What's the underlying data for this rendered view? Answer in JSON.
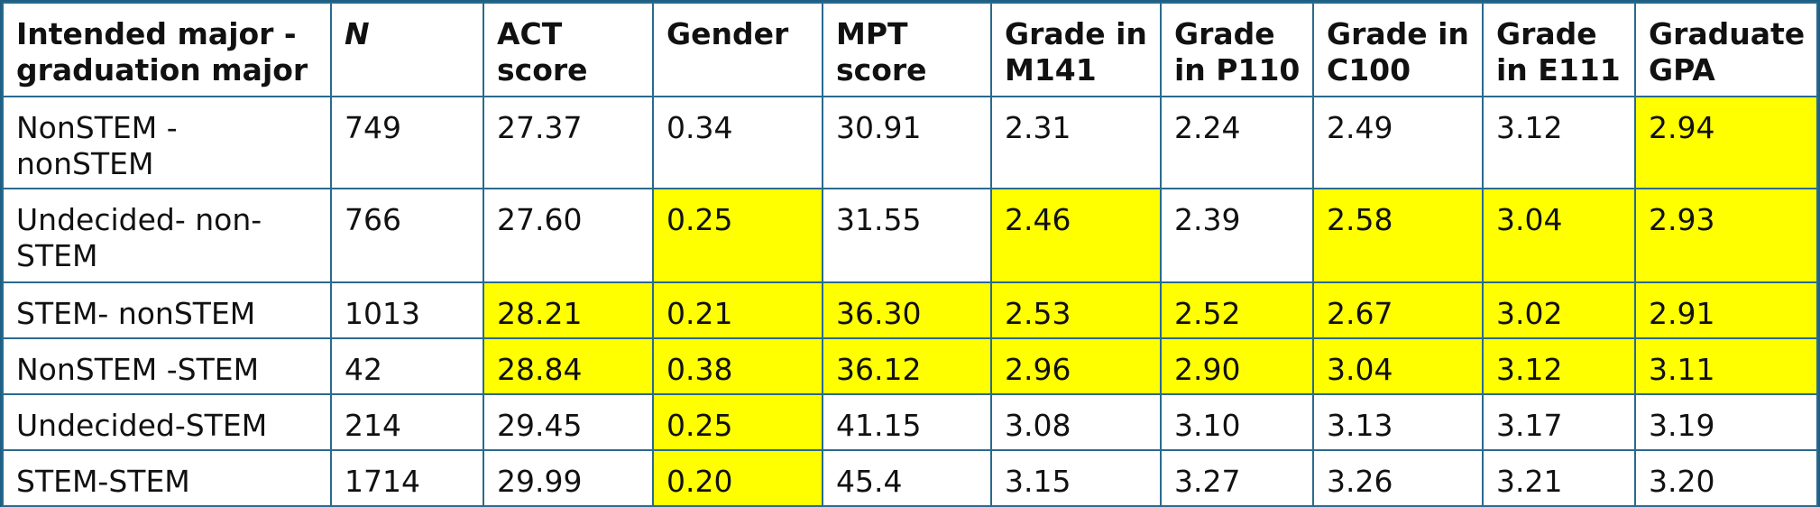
{
  "highlight_color": "#ffff00",
  "border_color": "#2a6a8e",
  "table": {
    "headers": [
      "Intended major - graduation major",
      "N",
      "ACT score",
      "Gender",
      "MPT score",
      "Grade in M141",
      "Grade in P110",
      "Grade in C100",
      "Grade in E111",
      "Graduate GPA"
    ],
    "rows": [
      {
        "cells": [
          "NonSTEM - nonSTEM",
          "749",
          "27.37",
          "0.34",
          "30.91",
          "2.31",
          "2.24",
          "2.49",
          "3.12",
          "2.94"
        ],
        "highlighted": [
          false,
          false,
          false,
          false,
          false,
          false,
          false,
          false,
          false,
          true
        ]
      },
      {
        "cells": [
          "Undecided- non-STEM",
          "766",
          "27.60",
          "0.25",
          "31.55",
          "2.46",
          "2.39",
          "2.58",
          "3.04",
          "2.93"
        ],
        "highlighted": [
          false,
          false,
          false,
          true,
          false,
          true,
          false,
          true,
          true,
          true
        ]
      },
      {
        "cells": [
          "STEM- nonSTEM",
          "1013",
          "28.21",
          "0.21",
          "36.30",
          "2.53",
          "2.52",
          "2.67",
          "3.02",
          "2.91"
        ],
        "highlighted": [
          false,
          false,
          true,
          true,
          true,
          true,
          true,
          true,
          true,
          true
        ]
      },
      {
        "cells": [
          "NonSTEM -STEM",
          "42",
          "28.84",
          "0.38",
          "36.12",
          "2.96",
          "2.90",
          "3.04",
          "3.12",
          "3.11"
        ],
        "highlighted": [
          false,
          false,
          true,
          true,
          true,
          true,
          true,
          true,
          true,
          true
        ]
      },
      {
        "cells": [
          "Undecided-STEM",
          "214",
          "29.45",
          "0.25",
          "41.15",
          "3.08",
          "3.10",
          "3.13",
          "3.17",
          "3.19"
        ],
        "highlighted": [
          false,
          false,
          false,
          true,
          false,
          false,
          false,
          false,
          false,
          false
        ]
      },
      {
        "cells": [
          "STEM-STEM",
          "1714",
          "29.99",
          "0.20",
          "45.4",
          "3.15",
          "3.27",
          "3.26",
          "3.21",
          "3.20"
        ],
        "highlighted": [
          false,
          false,
          false,
          true,
          false,
          false,
          false,
          false,
          false,
          false
        ]
      }
    ]
  }
}
